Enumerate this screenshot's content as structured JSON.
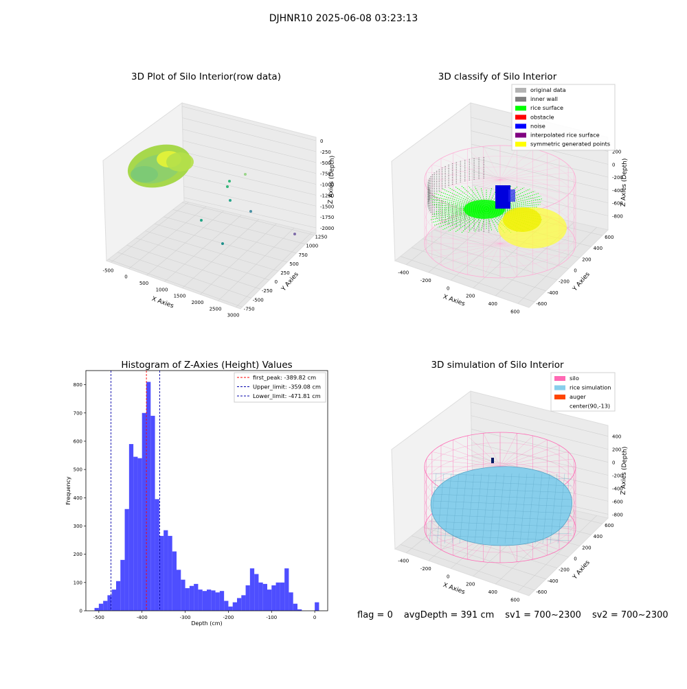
{
  "figure": {
    "suptitle": "DJHNR10 2025-06-08 03:23:13"
  },
  "footer": {
    "flag": "flag = 0",
    "avg_depth": "avgDepth = 391 cm",
    "sv1": "sv1 = 700~2300",
    "sv2": "sv2 = 700~2300"
  },
  "colors": {
    "original_data": "#b3b3b3",
    "inner_wall": "#808080",
    "rice_surface": "#00ff00",
    "obstacle": "#ff0000",
    "noise": "#0000ff",
    "interpolated_rice_surface": "#800080",
    "symmetric_generated_points": "#ffff00",
    "silo": "#ff69b4",
    "rice_simulation": "#87ceeb",
    "auger": "#ff4500",
    "histogram": "#4444ff"
  },
  "chart_data": [
    {
      "type": "scatter3d",
      "title": "3D Plot of Silo Interior(row data)",
      "xlabel": "X Axies",
      "ylabel": "Y Axies",
      "zlabel": "Z Axies (Depth)",
      "x_ticks": [
        "-500",
        "0",
        "500",
        "1000",
        "1500",
        "2000",
        "2500",
        "3000"
      ],
      "y_ticks": [
        "-750",
        "-500",
        "-250",
        "0",
        "250",
        "500",
        "750",
        "1000",
        "1250"
      ],
      "z_ticks": [
        "0",
        "-250",
        "-500",
        "-750",
        "-1000",
        "-1250",
        "-1500",
        "-1750",
        "-2000"
      ]
    },
    {
      "type": "scatter3d",
      "title": "3D classify of Silo Interior",
      "xlabel": "X Axies",
      "ylabel": "Y Axies",
      "zlabel": "Z Axies (Depth)",
      "x_ticks": [
        "-400",
        "-200",
        "0",
        "200",
        "400",
        "600"
      ],
      "y_ticks": [
        "-600",
        "-400",
        "-200",
        "0",
        "200",
        "400",
        "600"
      ],
      "z_ticks": [
        "200",
        "0",
        "-200",
        "-400",
        "-600",
        "-800"
      ],
      "legend": [
        "original data",
        "inner wall",
        "rice surface",
        "obstacle",
        "noise",
        "interpolated rice surface",
        "symmetric generated points"
      ],
      "legend_loc": "top-right"
    },
    {
      "type": "bar",
      "title": "Histogram of Z-Axies (Height) Values",
      "xlabel": "Depth (cm)",
      "ylabel": "Frequency",
      "xlim": [
        -530,
        30
      ],
      "ylim": [
        0,
        850
      ],
      "x_ticks": [
        -500,
        -400,
        -300,
        -200,
        -100,
        0
      ],
      "y_ticks": [
        0,
        100,
        200,
        300,
        400,
        500,
        600,
        700,
        800
      ],
      "bin_width": 10,
      "bin_starts": [
        -510,
        -500,
        -490,
        -480,
        -470,
        -460,
        -450,
        -440,
        -430,
        -420,
        -410,
        -400,
        -390,
        -380,
        -370,
        -360,
        -350,
        -340,
        -330,
        -320,
        -310,
        -300,
        -290,
        -280,
        -270,
        -260,
        -250,
        -240,
        -230,
        -220,
        -210,
        -200,
        -190,
        -180,
        -170,
        -160,
        -150,
        -140,
        -130,
        -120,
        -110,
        -100,
        -90,
        -80,
        -70,
        -60,
        -50,
        -40,
        -30,
        -20,
        -10,
        0
      ],
      "values": [
        10,
        25,
        35,
        55,
        75,
        105,
        180,
        360,
        590,
        545,
        540,
        700,
        810,
        690,
        395,
        265,
        285,
        265,
        210,
        145,
        110,
        80,
        88,
        95,
        75,
        70,
        75,
        72,
        65,
        70,
        35,
        15,
        30,
        45,
        55,
        90,
        150,
        130,
        100,
        95,
        75,
        90,
        100,
        100,
        150,
        65,
        25,
        5,
        0,
        0,
        0,
        30
      ],
      "vlines": [
        {
          "label": "first_peak: -389.82 cm",
          "x": -389.82,
          "color": "#ff0000"
        },
        {
          "label": "Upper_limit: -359.08 cm",
          "x": -359.08,
          "color": "#0000aa"
        },
        {
          "label": "Lower_limit: -471.81 cm",
          "x": -471.81,
          "color": "#0000aa"
        }
      ],
      "legend_loc": "top-right"
    },
    {
      "type": "surface3d",
      "title": "3D simulation of Silo Interior",
      "xlabel": "X Axies",
      "ylabel": "Y Axies",
      "zlabel": "Z Axies (Depth)",
      "x_ticks": [
        "-400",
        "-200",
        "0",
        "200",
        "400",
        "600"
      ],
      "y_ticks": [
        "-600",
        "-400",
        "-200",
        "0",
        "200",
        "400",
        "600"
      ],
      "z_ticks": [
        "400",
        "200",
        "0",
        "-200",
        "-400",
        "-600",
        "-800"
      ],
      "legend": [
        "silo",
        "rice simulation",
        "auger",
        "center(90,-13)"
      ],
      "legend_loc": "top-right"
    }
  ]
}
